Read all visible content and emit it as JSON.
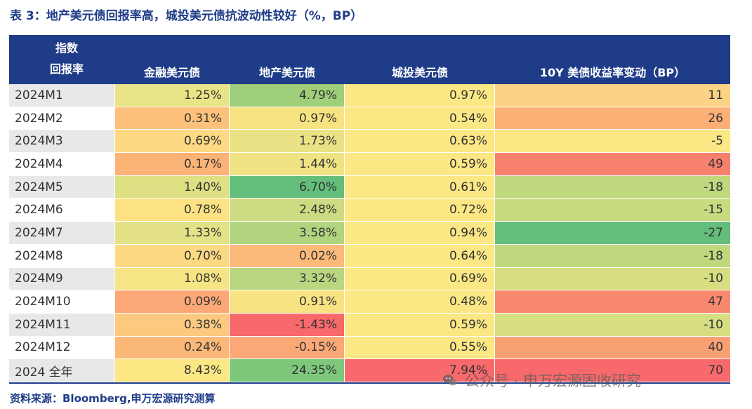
{
  "title": "表 3：地产美元债回报率高，城投美元债抗波动性较好（%，BP）",
  "header": {
    "index_line1": "指数",
    "index_line2": "回报率",
    "col1": "金融美元债",
    "col2": "地产美元债",
    "col3": "城投美元债",
    "col4": "10Y 美债收益率变动（BP）"
  },
  "rows": [
    {
      "label": "2024M1",
      "c1": "1.25%",
      "c2": "4.79%",
      "c3": "0.97%",
      "c4": "11"
    },
    {
      "label": "2024M2",
      "c1": "0.31%",
      "c2": "0.97%",
      "c3": "0.54%",
      "c4": "26"
    },
    {
      "label": "2024M3",
      "c1": "0.69%",
      "c2": "1.73%",
      "c3": "0.63%",
      "c4": "-5"
    },
    {
      "label": "2024M4",
      "c1": "0.17%",
      "c2": "1.44%",
      "c3": "0.59%",
      "c4": "49"
    },
    {
      "label": "2024M5",
      "c1": "1.40%",
      "c2": "6.70%",
      "c3": "0.61%",
      "c4": "-18"
    },
    {
      "label": "2024M6",
      "c1": "0.78%",
      "c2": "2.48%",
      "c3": "0.72%",
      "c4": "-15"
    },
    {
      "label": "2024M7",
      "c1": "1.33%",
      "c2": "3.58%",
      "c3": "0.94%",
      "c4": "-27"
    },
    {
      "label": "2024M8",
      "c1": "0.70%",
      "c2": "0.02%",
      "c3": "0.64%",
      "c4": "-18"
    },
    {
      "label": "2024M9",
      "c1": "1.08%",
      "c2": "3.32%",
      "c3": "0.69%",
      "c4": "-10"
    },
    {
      "label": "2024M10",
      "c1": "0.09%",
      "c2": "0.91%",
      "c3": "0.48%",
      "c4": "47"
    },
    {
      "label": "2024M11",
      "c1": "0.38%",
      "c2": "-1.43%",
      "c3": "0.59%",
      "c4": "-10"
    },
    {
      "label": "2024M12",
      "c1": "0.24%",
      "c2": "-0.15%",
      "c3": "0.55%",
      "c4": "40"
    },
    {
      "label": "2024 全年",
      "c1": "8.43%",
      "c2": "24.35%",
      "c3": "7.94%",
      "c4": "70"
    }
  ],
  "colors": [
    [
      "#e9e487",
      "#9fcf7a",
      "#fbe784",
      "#fcd384"
    ],
    [
      "#fcc27b",
      "#f7e381",
      "#fbe784",
      "#fcb076"
    ],
    [
      "#fdd983",
      "#ebe286",
      "#fbe784",
      "#fbe784"
    ],
    [
      "#fbb376",
      "#f0e384",
      "#fbe784",
      "#f8816d"
    ],
    [
      "#dde083",
      "#63be7b",
      "#fbe784",
      "#bfd87e"
    ],
    [
      "#fce283",
      "#cddb82",
      "#fbe784",
      "#c9db80"
    ],
    [
      "#e3e286",
      "#b2d47f",
      "#fbe784",
      "#63be7b"
    ],
    [
      "#fdd983",
      "#fbb97a",
      "#fbe784",
      "#bfd87e"
    ],
    [
      "#f5e584",
      "#bbd680",
      "#fbe784",
      "#d6de81"
    ],
    [
      "#fba876",
      "#f8e382",
      "#fbe784",
      "#f8896e"
    ],
    [
      "#fcc97e",
      "#f8696b",
      "#fbe784",
      "#d6de81"
    ],
    [
      "#fbb878",
      "#fba876",
      "#fbe784",
      "#f9a073"
    ],
    [
      "#fbe784",
      "#7ec87c",
      "#f8696b",
      "#f8696b"
    ]
  ],
  "source": "资料来源：Bloomberg,申万宏源研究测算",
  "watermark": "公众号 · 申万宏源固收研究"
}
